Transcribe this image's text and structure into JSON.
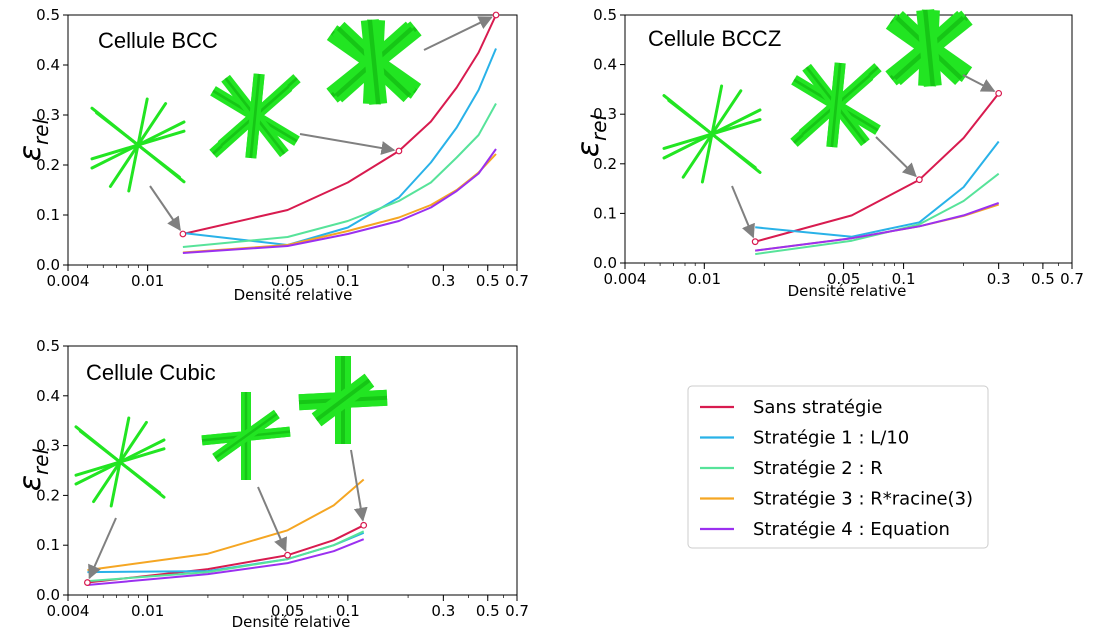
{
  "colors": {
    "series": [
      "#d81b4f",
      "#29b2e8",
      "#57e39a",
      "#f5a623",
      "#9b30f0"
    ],
    "arrow": "#808080",
    "lattice": "#22e522"
  },
  "legend": {
    "entries": [
      "Sans stratégie",
      "Stratégie 1 : L/10",
      "Stratégie 2 : R",
      "Stratégie 3 : R*racine(3)",
      "Stratégie 4 : Equation"
    ]
  },
  "chart_data": [
    {
      "type": "line",
      "title": "Cellule BCC",
      "xlabel": "Densité relative",
      "ylabel": "ε",
      "ylabel_sub": "rel",
      "x_scale": "log",
      "xlim": [
        0.004,
        0.7
      ],
      "ylim": [
        0,
        0.5
      ],
      "x_ticks": [
        0.004,
        0.01,
        0.05,
        0.1,
        0.3,
        0.5,
        0.7
      ],
      "x_tick_labels": [
        "0.004",
        "0.01",
        "0.05",
        "0.1",
        "0.3",
        "0.5",
        "0.7"
      ],
      "y_ticks": [
        0,
        0.1,
        0.2,
        0.3,
        0.4,
        0.5
      ],
      "y_tick_labels": [
        "0.0",
        "0.1",
        "0.2",
        "0.3",
        "0.4",
        "0.5"
      ],
      "x": [
        0.015,
        0.05,
        0.1,
        0.18,
        0.26,
        0.35,
        0.45,
        0.55
      ],
      "series": [
        {
          "name": "Sans stratégie",
          "values": [
            0.062,
            0.11,
            0.165,
            0.228,
            0.287,
            0.355,
            0.425,
            0.5
          ]
        },
        {
          "name": "Stratégie 1 : L/10",
          "values": [
            0.064,
            0.04,
            0.075,
            0.135,
            0.205,
            0.275,
            0.35,
            0.433
          ]
        },
        {
          "name": "Stratégie 2 : R",
          "values": [
            0.036,
            0.056,
            0.088,
            0.128,
            0.165,
            0.215,
            0.26,
            0.323
          ]
        },
        {
          "name": "Stratégie 3 : R*racine(3)",
          "values": [
            0.025,
            0.04,
            0.068,
            0.095,
            0.12,
            0.15,
            0.185,
            0.222
          ]
        },
        {
          "name": "Stratégie 4 : Equation",
          "values": [
            0.024,
            0.038,
            0.062,
            0.088,
            0.115,
            0.148,
            0.183,
            0.232
          ]
        }
      ],
      "highlighted_points": [
        [
          0.015,
          0.062
        ],
        [
          0.18,
          0.228
        ],
        [
          0.55,
          0.5
        ]
      ]
    },
    {
      "type": "line",
      "title": "Cellule BCCZ",
      "xlabel": "Densité relative",
      "ylabel": "ε",
      "ylabel_sub": "rel",
      "x_scale": "log",
      "xlim": [
        0.004,
        0.7
      ],
      "ylim": [
        0,
        0.5
      ],
      "x_ticks": [
        0.004,
        0.01,
        0.05,
        0.1,
        0.3,
        0.5,
        0.7
      ],
      "x_tick_labels": [
        "0.004",
        "0.01",
        "0.05",
        "0.1",
        "0.3",
        "0.5",
        "0.7"
      ],
      "y_ticks": [
        0,
        0.1,
        0.2,
        0.3,
        0.4,
        0.5
      ],
      "y_tick_labels": [
        "0.0",
        "0.1",
        "0.2",
        "0.3",
        "0.4",
        "0.5"
      ],
      "x": [
        0.018,
        0.055,
        0.12,
        0.2,
        0.3
      ],
      "series": [
        {
          "name": "Sans stratégie",
          "values": [
            0.043,
            0.096,
            0.168,
            0.252,
            0.342
          ]
        },
        {
          "name": "Stratégie 1 : L/10",
          "values": [
            0.072,
            0.053,
            0.082,
            0.153,
            0.245
          ]
        },
        {
          "name": "Stratégie 2 : R",
          "values": [
            0.018,
            0.045,
            0.078,
            0.125,
            0.18
          ]
        },
        {
          "name": "Stratégie 3 : R*racine(3)",
          "values": [
            0.025,
            0.05,
            0.074,
            0.095,
            0.118
          ]
        },
        {
          "name": "Stratégie 4 : Equation",
          "values": [
            0.025,
            0.05,
            0.074,
            0.096,
            0.121
          ]
        }
      ],
      "highlighted_points": [
        [
          0.018,
          0.043
        ],
        [
          0.12,
          0.168
        ],
        [
          0.3,
          0.342
        ]
      ]
    },
    {
      "type": "line",
      "title": "Cellule Cubic",
      "xlabel": "Densité relative",
      "ylabel": "ε",
      "ylabel_sub": "rel",
      "x_scale": "log",
      "xlim": [
        0.004,
        0.7
      ],
      "ylim": [
        0,
        0.5
      ],
      "x_ticks": [
        0.004,
        0.01,
        0.05,
        0.1,
        0.3,
        0.5,
        0.7
      ],
      "x_tick_labels": [
        "0.004",
        "0.01",
        "0.05",
        "0.1",
        "0.3",
        "0.5",
        "0.7"
      ],
      "y_ticks": [
        0,
        0.1,
        0.2,
        0.3,
        0.4,
        0.5
      ],
      "y_tick_labels": [
        "0.0",
        "0.1",
        "0.2",
        "0.3",
        "0.4",
        "0.5"
      ],
      "x": [
        0.005,
        0.02,
        0.05,
        0.085,
        0.12
      ],
      "series": [
        {
          "name": "Sans stratégie",
          "values": [
            0.025,
            0.052,
            0.08,
            0.11,
            0.14
          ]
        },
        {
          "name": "Stratégie 1 : L/10",
          "values": [
            0.046,
            0.048,
            0.072,
            0.1,
            0.125
          ]
        },
        {
          "name": "Stratégie 2 : R",
          "values": [
            0.028,
            0.046,
            0.072,
            0.1,
            0.128
          ]
        },
        {
          "name": "Stratégie 3 : R*racine(3)",
          "values": [
            0.05,
            0.083,
            0.13,
            0.18,
            0.232
          ]
        },
        {
          "name": "Stratégie 4 : Equation",
          "values": [
            0.02,
            0.042,
            0.064,
            0.088,
            0.112
          ]
        }
      ],
      "highlighted_points": [
        [
          0.005,
          0.025
        ],
        [
          0.05,
          0.08
        ],
        [
          0.12,
          0.14
        ]
      ]
    }
  ]
}
